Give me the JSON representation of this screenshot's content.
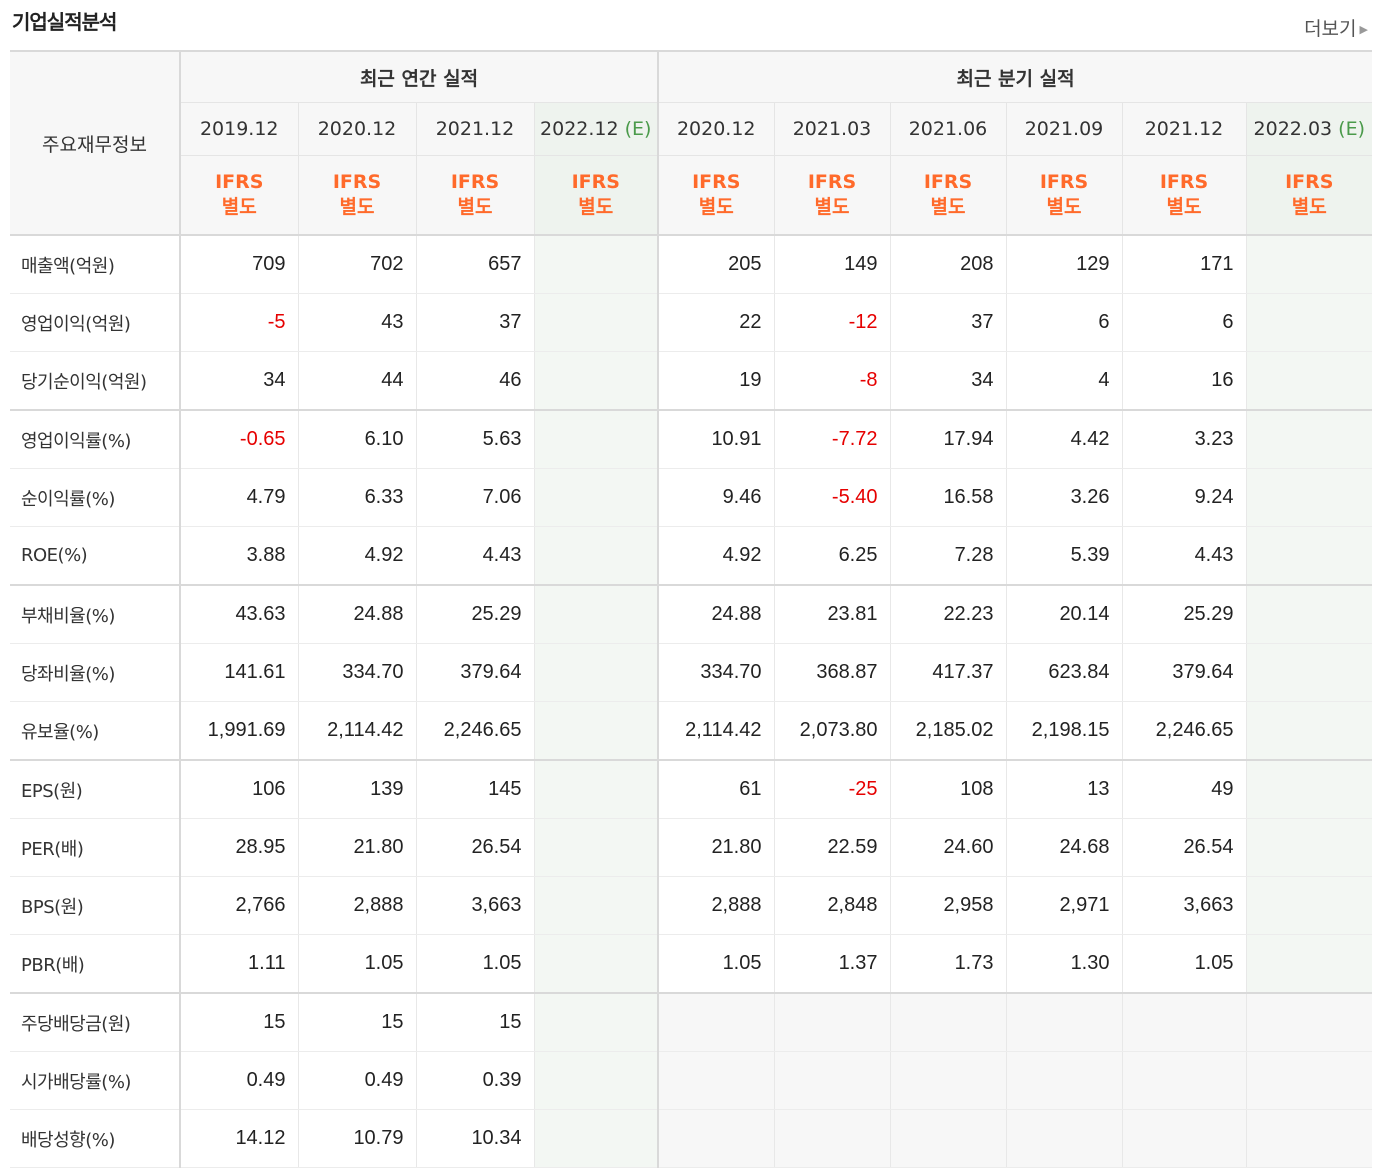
{
  "section": {
    "title": "기업실적분석",
    "more_label": "더보기"
  },
  "table": {
    "corner_label": "주요재무정보",
    "annual_header": "최근 연간 실적",
    "quarterly_header": "최근 분기 실적",
    "ifrs_top": "IFRS",
    "ifrs_bottom": "별도",
    "estimate_mark": "(E)",
    "annual_periods": [
      "2019.12",
      "2020.12",
      "2021.12",
      "2022.12"
    ],
    "quarterly_periods": [
      "2020.12",
      "2021.03",
      "2021.06",
      "2021.09",
      "2021.12",
      "2022.03"
    ],
    "rows": [
      {
        "label": "매출액(억원)",
        "annual": [
          "709",
          "702",
          "657",
          ""
        ],
        "quarterly": [
          "205",
          "149",
          "208",
          "129",
          "171",
          ""
        ]
      },
      {
        "label": "영업이익(억원)",
        "annual": [
          "-5",
          "43",
          "37",
          ""
        ],
        "quarterly": [
          "22",
          "-12",
          "37",
          "6",
          "6",
          ""
        ]
      },
      {
        "label": "당기순이익(억원)",
        "annual": [
          "34",
          "44",
          "46",
          ""
        ],
        "quarterly": [
          "19",
          "-8",
          "34",
          "4",
          "16",
          ""
        ]
      },
      {
        "label": "영업이익률(%)",
        "annual": [
          "-0.65",
          "6.10",
          "5.63",
          ""
        ],
        "quarterly": [
          "10.91",
          "-7.72",
          "17.94",
          "4.42",
          "3.23",
          ""
        ]
      },
      {
        "label": "순이익률(%)",
        "annual": [
          "4.79",
          "6.33",
          "7.06",
          ""
        ],
        "quarterly": [
          "9.46",
          "-5.40",
          "16.58",
          "3.26",
          "9.24",
          ""
        ]
      },
      {
        "label": "ROE(%)",
        "annual": [
          "3.88",
          "4.92",
          "4.43",
          ""
        ],
        "quarterly": [
          "4.92",
          "6.25",
          "7.28",
          "5.39",
          "4.43",
          ""
        ]
      },
      {
        "label": "부채비율(%)",
        "annual": [
          "43.63",
          "24.88",
          "25.29",
          ""
        ],
        "quarterly": [
          "24.88",
          "23.81",
          "22.23",
          "20.14",
          "25.29",
          ""
        ]
      },
      {
        "label": "당좌비율(%)",
        "annual": [
          "141.61",
          "334.70",
          "379.64",
          ""
        ],
        "quarterly": [
          "334.70",
          "368.87",
          "417.37",
          "623.84",
          "379.64",
          ""
        ]
      },
      {
        "label": "유보율(%)",
        "annual": [
          "1,991.69",
          "2,114.42",
          "2,246.65",
          ""
        ],
        "quarterly": [
          "2,114.42",
          "2,073.80",
          "2,185.02",
          "2,198.15",
          "2,246.65",
          ""
        ]
      },
      {
        "label": "EPS(원)",
        "annual": [
          "106",
          "139",
          "145",
          ""
        ],
        "quarterly": [
          "61",
          "-25",
          "108",
          "13",
          "49",
          ""
        ]
      },
      {
        "label": "PER(배)",
        "annual": [
          "28.95",
          "21.80",
          "26.54",
          ""
        ],
        "quarterly": [
          "21.80",
          "22.59",
          "24.60",
          "24.68",
          "26.54",
          ""
        ]
      },
      {
        "label": "BPS(원)",
        "annual": [
          "2,766",
          "2,888",
          "3,663",
          ""
        ],
        "quarterly": [
          "2,888",
          "2,848",
          "2,958",
          "2,971",
          "3,663",
          ""
        ]
      },
      {
        "label": "PBR(배)",
        "annual": [
          "1.11",
          "1.05",
          "1.05",
          ""
        ],
        "quarterly": [
          "1.05",
          "1.37",
          "1.73",
          "1.30",
          "1.05",
          ""
        ]
      },
      {
        "label": "주당배당금(원)",
        "annual": [
          "15",
          "15",
          "15",
          ""
        ],
        "quarterly": [
          "",
          "",
          "",
          "",
          "",
          ""
        ]
      },
      {
        "label": "시가배당률(%)",
        "annual": [
          "0.49",
          "0.49",
          "0.39",
          ""
        ],
        "quarterly": [
          "",
          "",
          "",
          "",
          "",
          ""
        ]
      },
      {
        "label": "배당성향(%)",
        "annual": [
          "14.12",
          "10.79",
          "10.34",
          ""
        ],
        "quarterly": [
          "",
          "",
          "",
          "",
          "",
          ""
        ]
      }
    ]
  },
  "colors": {
    "negative": "#e60000",
    "ifrs": "#ff6a2b",
    "estimate": "#4a9a4a"
  }
}
